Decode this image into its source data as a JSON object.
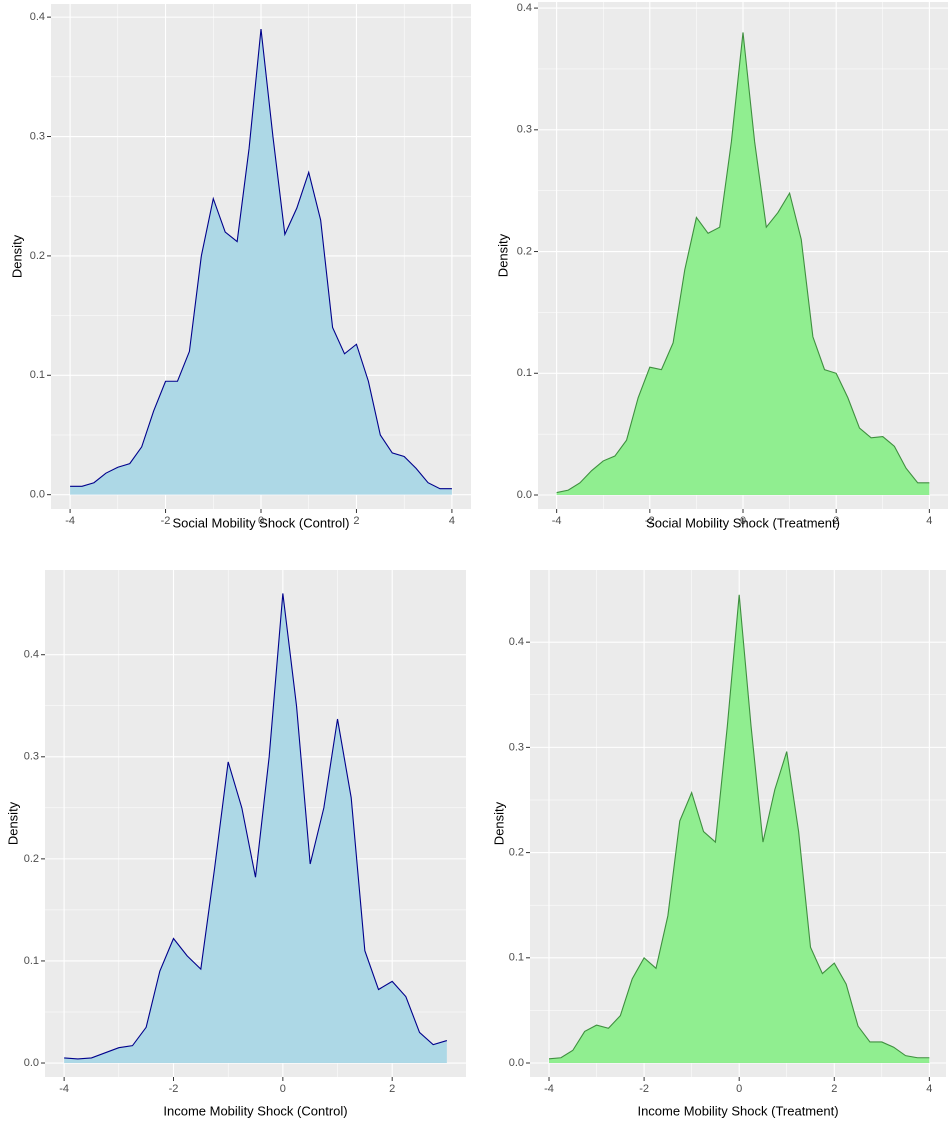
{
  "chart_data": [
    {
      "type": "area",
      "xlabel": "Social Mobility Shock (Control)",
      "ylabel": "Density",
      "x": [
        -4,
        -3.75,
        -3.5,
        -3.25,
        -3,
        -2.75,
        -2.5,
        -2.25,
        -2,
        -1.75,
        -1.5,
        -1.25,
        -1,
        -0.75,
        -0.5,
        -0.25,
        0,
        0.25,
        0.5,
        0.75,
        1,
        1.25,
        1.5,
        1.75,
        2,
        2.25,
        2.5,
        2.75,
        3,
        3.25,
        3.5,
        3.75,
        4
      ],
      "values": [
        0.007,
        0.007,
        0.01,
        0.018,
        0.023,
        0.026,
        0.04,
        0.07,
        0.095,
        0.095,
        0.12,
        0.2,
        0.248,
        0.22,
        0.212,
        0.29,
        0.39,
        0.3,
        0.218,
        0.24,
        0.27,
        0.23,
        0.14,
        0.118,
        0.126,
        0.095,
        0.05,
        0.035,
        0.032,
        0.022,
        0.01,
        0.005,
        0.005
      ],
      "color": "#add8e6",
      "line_color": "#00008b",
      "xlim": [
        -4.4,
        4.4
      ],
      "ylim": [
        -0.012,
        0.411
      ],
      "xticks": [
        -4,
        -2,
        0,
        2,
        4
      ],
      "yticks": [
        {
          "value": 0,
          "label": "0.0"
        },
        0.1,
        0.2,
        0.3,
        0.4
      ],
      "grid": true
    },
    {
      "type": "area",
      "xlabel": "Social Mobility Shock (Treatment)",
      "ylabel": "Density",
      "x": [
        -4,
        -3.75,
        -3.5,
        -3.25,
        -3,
        -2.75,
        -2.5,
        -2.25,
        -2,
        -1.75,
        -1.5,
        -1.25,
        -1,
        -0.75,
        -0.5,
        -0.25,
        0,
        0.25,
        0.5,
        0.75,
        1,
        1.25,
        1.5,
        1.75,
        2,
        2.25,
        2.5,
        2.75,
        3,
        3.25,
        3.5,
        3.75,
        4
      ],
      "values": [
        0.002,
        0.004,
        0.01,
        0.02,
        0.028,
        0.032,
        0.045,
        0.08,
        0.105,
        0.103,
        0.125,
        0.185,
        0.228,
        0.215,
        0.22,
        0.29,
        0.38,
        0.29,
        0.22,
        0.232,
        0.248,
        0.21,
        0.13,
        0.103,
        0.1,
        0.08,
        0.055,
        0.047,
        0.048,
        0.04,
        0.022,
        0.01,
        0.01
      ],
      "color": "#90ee90",
      "line_color": "#3f8f3f",
      "xlim": [
        -4.4,
        4.4
      ],
      "ylim": [
        -0.0115,
        0.405
      ],
      "xticks": [
        -4,
        -2,
        0,
        2,
        4
      ],
      "yticks": [
        {
          "value": 0,
          "label": "0.0"
        },
        0.1,
        0.2,
        0.3,
        0.4
      ],
      "grid": true
    },
    {
      "type": "area",
      "xlabel": "Income Mobility Shock (Control)",
      "ylabel": "Density",
      "x": [
        -4,
        -3.75,
        -3.5,
        -3.25,
        -3,
        -2.75,
        -2.5,
        -2.25,
        -2,
        -1.75,
        -1.5,
        -1.25,
        -1,
        -0.75,
        -0.5,
        -0.25,
        0,
        0.25,
        0.5,
        0.75,
        1,
        1.25,
        1.5,
        1.75,
        2,
        2.25,
        2.5,
        2.75,
        3
      ],
      "values": [
        0.005,
        0.004,
        0.005,
        0.01,
        0.015,
        0.017,
        0.035,
        0.09,
        0.122,
        0.105,
        0.092,
        0.19,
        0.295,
        0.25,
        0.182,
        0.3,
        0.46,
        0.35,
        0.195,
        0.25,
        0.337,
        0.26,
        0.11,
        0.072,
        0.08,
        0.065,
        0.03,
        0.018,
        0.022
      ],
      "color": "#add8e6",
      "line_color": "#00008b",
      "xlim": [
        -4.35,
        3.35
      ],
      "ylim": [
        -0.0137,
        0.483
      ],
      "xticks": [
        -4,
        -2,
        0,
        2
      ],
      "yticks": [
        {
          "value": 0,
          "label": "0.0"
        },
        0.1,
        0.2,
        0.3,
        0.4
      ],
      "grid": true
    },
    {
      "type": "area",
      "xlabel": "Income Mobility Shock (Treatment)",
      "ylabel": "Density",
      "x": [
        -4,
        -3.75,
        -3.5,
        -3.25,
        -3,
        -2.75,
        -2.5,
        -2.25,
        -2,
        -1.75,
        -1.5,
        -1.25,
        -1,
        -0.75,
        -0.5,
        -0.25,
        0,
        0.25,
        0.5,
        0.75,
        1,
        1.25,
        1.5,
        1.75,
        2,
        2.25,
        2.5,
        2.75,
        3,
        3.25,
        3.5,
        3.75,
        4
      ],
      "values": [
        0.004,
        0.005,
        0.012,
        0.03,
        0.036,
        0.033,
        0.045,
        0.08,
        0.1,
        0.09,
        0.14,
        0.23,
        0.257,
        0.22,
        0.21,
        0.32,
        0.445,
        0.32,
        0.21,
        0.26,
        0.296,
        0.22,
        0.11,
        0.085,
        0.095,
        0.075,
        0.035,
        0.02,
        0.02,
        0.015,
        0.007,
        0.005,
        0.005
      ],
      "color": "#90ee90",
      "line_color": "#3f8f3f",
      "xlim": [
        -4.4,
        4.35
      ],
      "ylim": [
        -0.0133,
        0.4686
      ],
      "xticks": [
        -4,
        -2,
        0,
        2,
        4
      ],
      "yticks": [
        {
          "value": 0,
          "label": "0.0"
        },
        0.1,
        0.2,
        0.3,
        0.4
      ],
      "grid": true
    }
  ]
}
